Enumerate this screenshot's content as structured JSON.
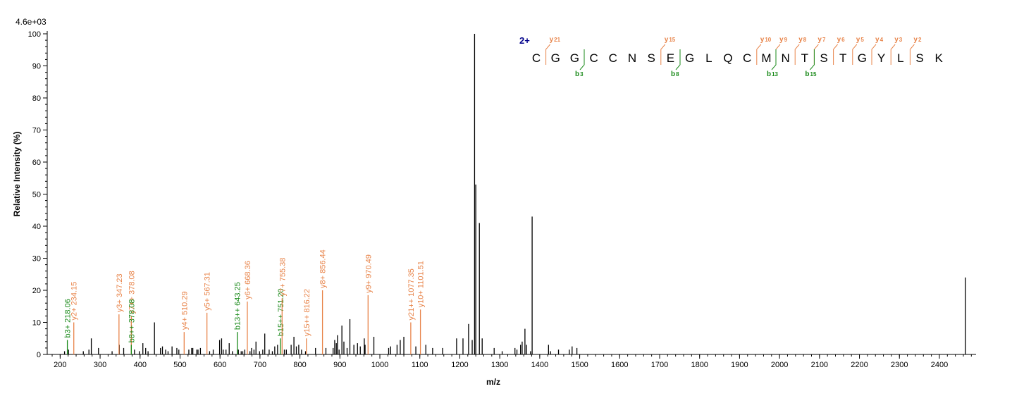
{
  "chart_data": {
    "type": "bar",
    "max_intensity_label": "4.6e+03",
    "xlabel": "m/z",
    "ylabel": "Relative   Intensity (%)",
    "xlim": [
      180,
      2490
    ],
    "ylim": [
      0,
      100
    ],
    "x_ticks": [
      200,
      300,
      400,
      500,
      600,
      700,
      800,
      900,
      1000,
      1100,
      1200,
      1300,
      1400,
      1500,
      1600,
      1700,
      1800,
      1900,
      2000,
      2100,
      2200,
      2300,
      2400
    ],
    "y_ticks": [
      0,
      10,
      20,
      30,
      40,
      50,
      60,
      70,
      80,
      90,
      100
    ],
    "colors": {
      "peak": "#000000",
      "y_ion": "#e8844a",
      "b_ion": "#1a8a1a",
      "charge": "#00008b"
    },
    "peaks": [
      [
        211,
        1
      ],
      [
        221,
        1.5
      ],
      [
        258,
        1
      ],
      [
        272,
        1.5
      ],
      [
        278,
        5
      ],
      [
        296,
        2
      ],
      [
        330,
        1
      ],
      [
        348,
        3
      ],
      [
        359,
        2
      ],
      [
        386,
        1.5
      ],
      [
        398,
        1
      ],
      [
        407,
        3.5
      ],
      [
        414,
        2
      ],
      [
        420,
        1
      ],
      [
        436,
        10
      ],
      [
        451,
        2
      ],
      [
        456,
        2.5
      ],
      [
        464,
        1.5
      ],
      [
        470,
        1
      ],
      [
        480,
        2.5
      ],
      [
        492,
        2
      ],
      [
        497,
        1.5
      ],
      [
        522,
        1.5
      ],
      [
        529,
        2
      ],
      [
        532,
        2
      ],
      [
        542,
        1.5
      ],
      [
        545,
        1.5
      ],
      [
        551,
        2
      ],
      [
        574,
        1
      ],
      [
        583,
        1.5
      ],
      [
        599,
        4.5
      ],
      [
        604,
        5
      ],
      [
        608,
        1.5
      ],
      [
        615,
        1.5
      ],
      [
        623,
        3.5
      ],
      [
        631,
        1
      ],
      [
        646,
        1.5
      ],
      [
        653,
        1
      ],
      [
        657,
        1
      ],
      [
        662,
        1.5
      ],
      [
        675,
        1
      ],
      [
        679,
        2
      ],
      [
        685,
        1.5
      ],
      [
        690,
        4
      ],
      [
        699,
        1
      ],
      [
        707,
        1.5
      ],
      [
        712,
        6.5
      ],
      [
        723,
        1.5
      ],
      [
        731,
        1
      ],
      [
        737,
        2.5
      ],
      [
        744,
        3
      ],
      [
        761,
        1.5
      ],
      [
        766,
        1.5
      ],
      [
        778,
        3
      ],
      [
        785,
        5.5
      ],
      [
        791,
        2.5
      ],
      [
        797,
        3
      ],
      [
        804,
        1.5
      ],
      [
        814,
        1
      ],
      [
        839,
        2
      ],
      [
        865,
        2
      ],
      [
        883,
        2
      ],
      [
        887,
        4.5
      ],
      [
        891,
        3.5
      ],
      [
        894,
        6
      ],
      [
        898,
        1.5
      ],
      [
        905,
        9
      ],
      [
        910,
        4
      ],
      [
        918,
        2
      ],
      [
        925,
        11
      ],
      [
        935,
        3
      ],
      [
        944,
        3.5
      ],
      [
        951,
        2.5
      ],
      [
        961,
        5
      ],
      [
        963,
        3
      ],
      [
        985,
        5.5
      ],
      [
        1022,
        2
      ],
      [
        1027,
        2.5
      ],
      [
        1043,
        3
      ],
      [
        1051,
        4.5
      ],
      [
        1060,
        5.5
      ],
      [
        1090,
        2.5
      ],
      [
        1115,
        3
      ],
      [
        1132,
        2
      ],
      [
        1157,
        2
      ],
      [
        1192,
        5
      ],
      [
        1208,
        5
      ],
      [
        1222,
        9.5
      ],
      [
        1231,
        4.5
      ],
      [
        1237,
        100
      ],
      [
        1240,
        53
      ],
      [
        1249,
        41
      ],
      [
        1256,
        5
      ],
      [
        1286,
        2
      ],
      [
        1306,
        1
      ],
      [
        1338,
        2
      ],
      [
        1343,
        1.5
      ],
      [
        1352,
        3
      ],
      [
        1356,
        4
      ],
      [
        1363,
        8
      ],
      [
        1367,
        3
      ],
      [
        1377,
        1
      ],
      [
        1381,
        43
      ],
      [
        1422,
        3
      ],
      [
        1427,
        1
      ],
      [
        1447,
        1.5
      ],
      [
        1474,
        1.5
      ],
      [
        1481,
        2.5
      ],
      [
        1493,
        2
      ],
      [
        2465,
        24
      ]
    ],
    "annotated_peaks": [
      {
        "mz": 218.06,
        "intensity": 4.5,
        "label": "b3+ 218.06",
        "ion": "b"
      },
      {
        "mz": 234.15,
        "intensity": 10,
        "label": "y2+ 234.15",
        "ion": "y"
      },
      {
        "mz": 347.23,
        "intensity": 12.5,
        "label": "y3+ 347.23",
        "ion": "y"
      },
      {
        "mz": 378.08,
        "intensity": 12,
        "label": "y7++ 378.08",
        "ion": "y"
      },
      {
        "mz": 378.08,
        "intensity": 3,
        "label": "b8++ 378.08",
        "ion": "b"
      },
      {
        "mz": 510.29,
        "intensity": 7,
        "label": "y4+ 510.29",
        "ion": "y"
      },
      {
        "mz": 567.31,
        "intensity": 13,
        "label": "y5+ 567.31",
        "ion": "y"
      },
      {
        "mz": 643.25,
        "intensity": 7,
        "label": "b13++ 643.25",
        "ion": "b"
      },
      {
        "mz": 668.36,
        "intensity": 16.5,
        "label": "y6+ 668.36",
        "ion": "y"
      },
      {
        "mz": 751.2,
        "intensity": 5,
        "label": "b15++ 751.20",
        "ion": "b"
      },
      {
        "mz": 755.38,
        "intensity": 17.5,
        "label": "y7+ 755.38",
        "ion": "y"
      },
      {
        "mz": 816.22,
        "intensity": 5,
        "label": "y15++ 816.22",
        "ion": "y"
      },
      {
        "mz": 856.44,
        "intensity": 20,
        "label": "y8+ 856.44",
        "ion": "y"
      },
      {
        "mz": 970.49,
        "intensity": 18.5,
        "label": "y9+ 970.49",
        "ion": "y"
      },
      {
        "mz": 1077.35,
        "intensity": 10,
        "label": "y21++ 1077.35",
        "ion": "y"
      },
      {
        "mz": 1101.51,
        "intensity": 14,
        "label": "y10+ 1101.51",
        "ion": "y"
      }
    ]
  },
  "sequence": {
    "charge": "2+",
    "residues": [
      "C",
      "G",
      "G",
      "C",
      "C",
      "N",
      "S",
      "E",
      "G",
      "L",
      "Q",
      "C",
      "M",
      "N",
      "T",
      "S",
      "T",
      "G",
      "Y",
      "L",
      "S",
      "K"
    ],
    "y_ions": [
      {
        "after": 1,
        "label": "y",
        "num": "21"
      },
      {
        "after": 7,
        "label": "y",
        "num": "15"
      },
      {
        "after": 12,
        "label": "y",
        "num": "10"
      },
      {
        "after": 13,
        "label": "y",
        "num": "9"
      },
      {
        "after": 14,
        "label": "y",
        "num": "8"
      },
      {
        "after": 15,
        "label": "y",
        "num": "7"
      },
      {
        "after": 16,
        "label": "y",
        "num": "6"
      },
      {
        "after": 17,
        "label": "y",
        "num": "5"
      },
      {
        "after": 18,
        "label": "y",
        "num": "4"
      },
      {
        "after": 19,
        "label": "y",
        "num": "3"
      },
      {
        "after": 20,
        "label": "y",
        "num": "2"
      }
    ],
    "b_ions": [
      {
        "after": 3,
        "label": "b",
        "num": "3"
      },
      {
        "after": 8,
        "label": "b",
        "num": "8"
      },
      {
        "after": 13,
        "label": "b",
        "num": "13"
      },
      {
        "after": 15,
        "label": "b",
        "num": "15"
      }
    ]
  }
}
